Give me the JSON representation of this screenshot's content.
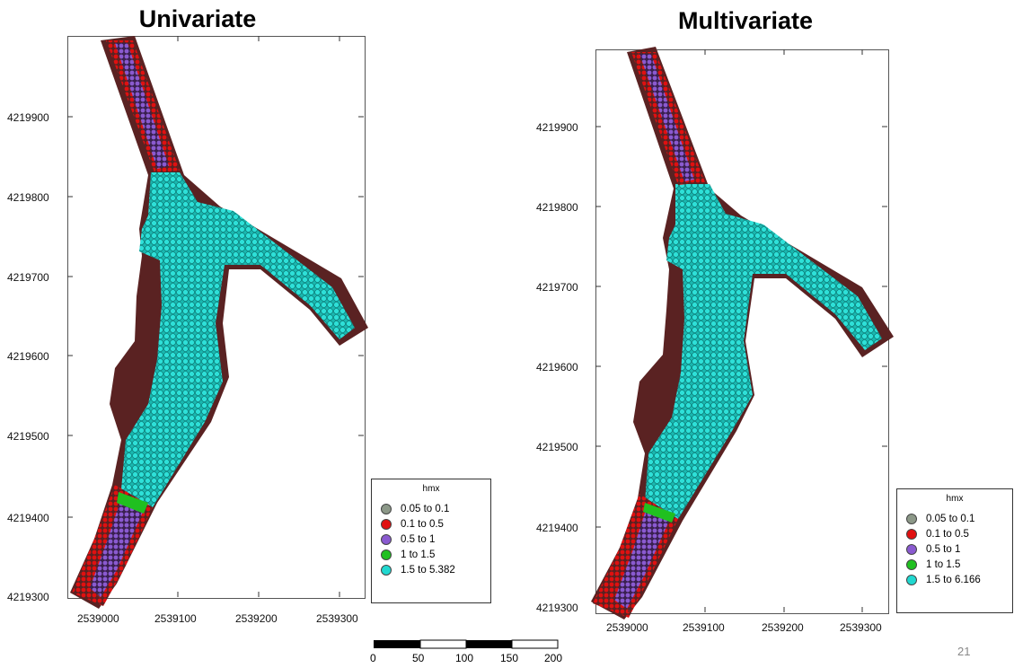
{
  "colors": {
    "c005_01": "#8c9888",
    "c01_05": "#e01010",
    "c05_1": "#8a5ad0",
    "c1_15": "#20c020",
    "c15_max": "#20d8d0",
    "bank": "#5a2222"
  },
  "maps": [
    {
      "title": "Univariate",
      "y_ticks": [
        "4219900",
        "4219800",
        "4219700",
        "4219600",
        "4219500",
        "4219400",
        "4219300"
      ],
      "x_ticks": [
        "2539000",
        "2539100",
        "2539200",
        "2539300"
      ],
      "legend": {
        "title": "hmx",
        "entries": [
          {
            "label": "0.05  to  0.1",
            "color_key": "c005_01"
          },
          {
            "label": "0.1  to  0.5",
            "color_key": "c01_05"
          },
          {
            "label": "0.5  to  1",
            "color_key": "c05_1"
          },
          {
            "label": "1  to  1.5",
            "color_key": "c1_15"
          },
          {
            "label": "1.5  to  5.382",
            "color_key": "c15_max"
          }
        ]
      }
    },
    {
      "title": "Multivariate",
      "y_ticks": [
        "4219900",
        "4219800",
        "4219700",
        "4219600",
        "4219500",
        "4219400",
        "4219300"
      ],
      "x_ticks": [
        "2539000",
        "2539100",
        "2539200",
        "2539300"
      ],
      "legend": {
        "title": "hmx",
        "entries": [
          {
            "label": "0.05  to  0.1",
            "color_key": "c005_01"
          },
          {
            "label": "0.1  to  0.5",
            "color_key": "c01_05"
          },
          {
            "label": "0.5  to  1",
            "color_key": "c05_1"
          },
          {
            "label": "1  to  1.5",
            "color_key": "c1_15"
          },
          {
            "label": "1.5  to  6.166",
            "color_key": "c15_max"
          }
        ]
      }
    }
  ],
  "scale_bar": {
    "labels": [
      "0",
      "50",
      "100",
      "150",
      "200"
    ]
  },
  "page_number": "21"
}
